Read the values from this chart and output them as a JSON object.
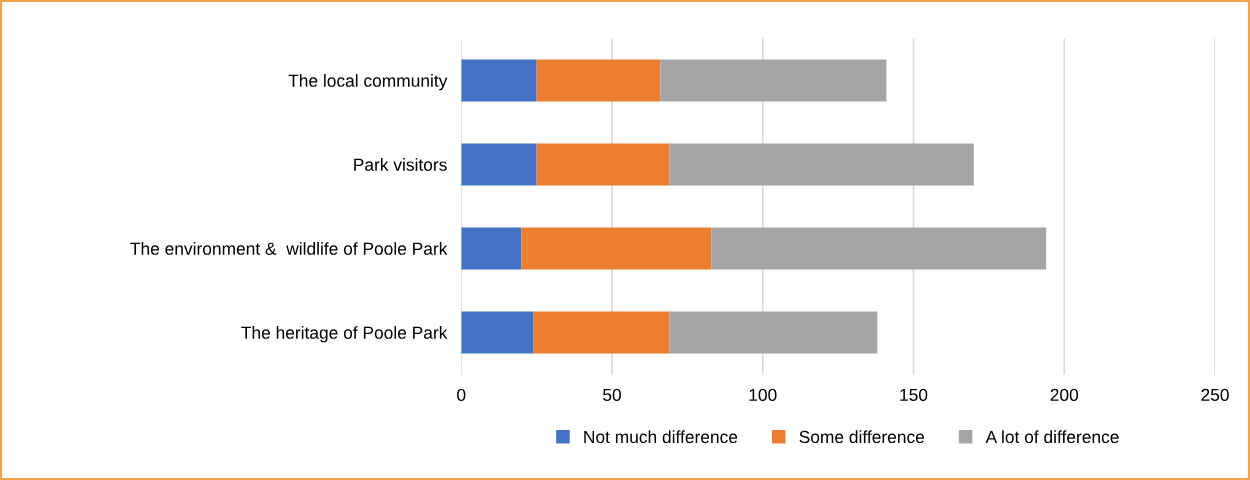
{
  "chart_data": {
    "type": "bar",
    "orientation": "horizontal",
    "stacked": true,
    "categories": [
      "The local community",
      "Park visitors",
      "The environment &  wildlife of Poole Park",
      "The heritage of Poole Park"
    ],
    "series": [
      {
        "name": "Not much difference",
        "color": "#4472c4",
        "values": [
          25,
          25,
          20,
          24
        ]
      },
      {
        "name": "Some difference",
        "color": "#ed7d31",
        "values": [
          41,
          44,
          63,
          45
        ]
      },
      {
        "name": "A lot of difference",
        "color": "#a5a5a5",
        "values": [
          75,
          101,
          111,
          69
        ]
      }
    ],
    "xlim": [
      0,
      250
    ],
    "xticks": [
      0,
      50,
      100,
      150,
      200,
      250
    ],
    "grid": "x",
    "legend": "bottom"
  }
}
